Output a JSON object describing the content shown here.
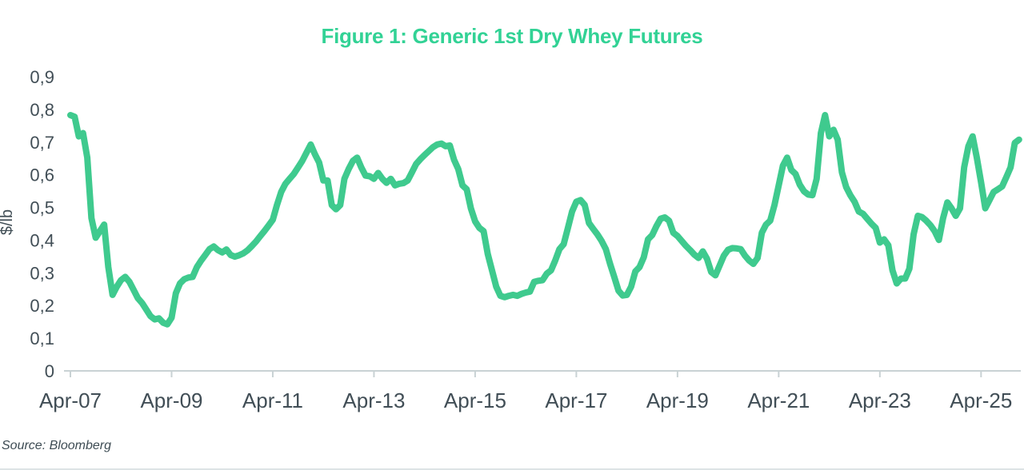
{
  "header": {
    "title": "Figure 1: Generic 1st Dry Whey Futures"
  },
  "footer": {
    "source": "Source: Bloomberg"
  },
  "colors": {
    "title_green": "#32d295",
    "line_green": "#3fca8e",
    "text_dark": "#414e56",
    "axis_gray": "#c9d2d4"
  },
  "chart_data": {
    "type": "line",
    "title": "Figure 1: Generic 1st Dry Whey Futures",
    "series_name": "Generic 1st Dry Whey Futures",
    "xlabel": "",
    "ylabel": "$/lb",
    "ylim": [
      0,
      0.9
    ],
    "grid": false,
    "legend": "none",
    "decimal_separator": ",",
    "y_ticks": [
      "0",
      "0,1",
      "0,2",
      "0,3",
      "0,4",
      "0,5",
      "0,6",
      "0,7",
      "0,8",
      "0,9"
    ],
    "x_ticks": [
      "Apr-07",
      "Apr-09",
      "Apr-11",
      "Apr-13",
      "Apr-15",
      "Apr-17",
      "Apr-19",
      "Apr-21",
      "Apr-23",
      "Apr-25"
    ],
    "frequency": "monthly",
    "x_start": "Apr-2007",
    "x_end": "Dec-2025",
    "values": [
      0.785,
      0.78,
      0.72,
      0.73,
      0.655,
      0.47,
      0.41,
      0.43,
      0.45,
      0.32,
      0.235,
      0.26,
      0.28,
      0.29,
      0.275,
      0.25,
      0.225,
      0.21,
      0.19,
      0.17,
      0.16,
      0.163,
      0.15,
      0.145,
      0.165,
      0.24,
      0.27,
      0.283,
      0.288,
      0.29,
      0.32,
      0.34,
      0.357,
      0.375,
      0.383,
      0.372,
      0.365,
      0.374,
      0.357,
      0.352,
      0.356,
      0.362,
      0.371,
      0.384,
      0.398,
      0.414,
      0.43,
      0.447,
      0.465,
      0.51,
      0.55,
      0.575,
      0.59,
      0.605,
      0.625,
      0.645,
      0.67,
      0.695,
      0.665,
      0.64,
      0.585,
      0.585,
      0.51,
      0.497,
      0.51,
      0.59,
      0.62,
      0.645,
      0.655,
      0.625,
      0.6,
      0.598,
      0.59,
      0.608,
      0.59,
      0.578,
      0.59,
      0.57,
      0.575,
      0.577,
      0.585,
      0.61,
      0.635,
      0.65,
      0.663,
      0.675,
      0.687,
      0.695,
      0.698,
      0.69,
      0.692,
      0.648,
      0.62,
      0.57,
      0.558,
      0.5,
      0.46,
      0.44,
      0.43,
      0.36,
      0.31,
      0.26,
      0.232,
      0.228,
      0.232,
      0.235,
      0.232,
      0.238,
      0.242,
      0.245,
      0.275,
      0.278,
      0.28,
      0.3,
      0.31,
      0.34,
      0.375,
      0.39,
      0.44,
      0.49,
      0.52,
      0.525,
      0.51,
      0.455,
      0.437,
      0.42,
      0.4,
      0.375,
      0.33,
      0.29,
      0.248,
      0.233,
      0.235,
      0.26,
      0.307,
      0.32,
      0.35,
      0.405,
      0.418,
      0.445,
      0.468,
      0.472,
      0.462,
      0.425,
      0.415,
      0.4,
      0.385,
      0.372,
      0.358,
      0.348,
      0.368,
      0.345,
      0.305,
      0.295,
      0.325,
      0.355,
      0.373,
      0.378,
      0.377,
      0.375,
      0.355,
      0.34,
      0.33,
      0.348,
      0.425,
      0.45,
      0.462,
      0.51,
      0.57,
      0.63,
      0.655,
      0.617,
      0.605,
      0.572,
      0.552,
      0.542,
      0.54,
      0.59,
      0.73,
      0.785,
      0.72,
      0.74,
      0.71,
      0.61,
      0.565,
      0.54,
      0.52,
      0.49,
      0.483,
      0.468,
      0.453,
      0.44,
      0.395,
      0.405,
      0.387,
      0.31,
      0.27,
      0.285,
      0.285,
      0.315,
      0.42,
      0.477,
      0.473,
      0.462,
      0.448,
      0.43,
      0.403,
      0.47,
      0.518,
      0.5,
      0.477,
      0.5,
      0.625,
      0.69,
      0.72,
      0.655,
      0.58,
      0.5,
      0.525,
      0.55,
      0.558,
      0.567,
      0.595,
      0.625,
      0.7,
      0.71
    ]
  }
}
